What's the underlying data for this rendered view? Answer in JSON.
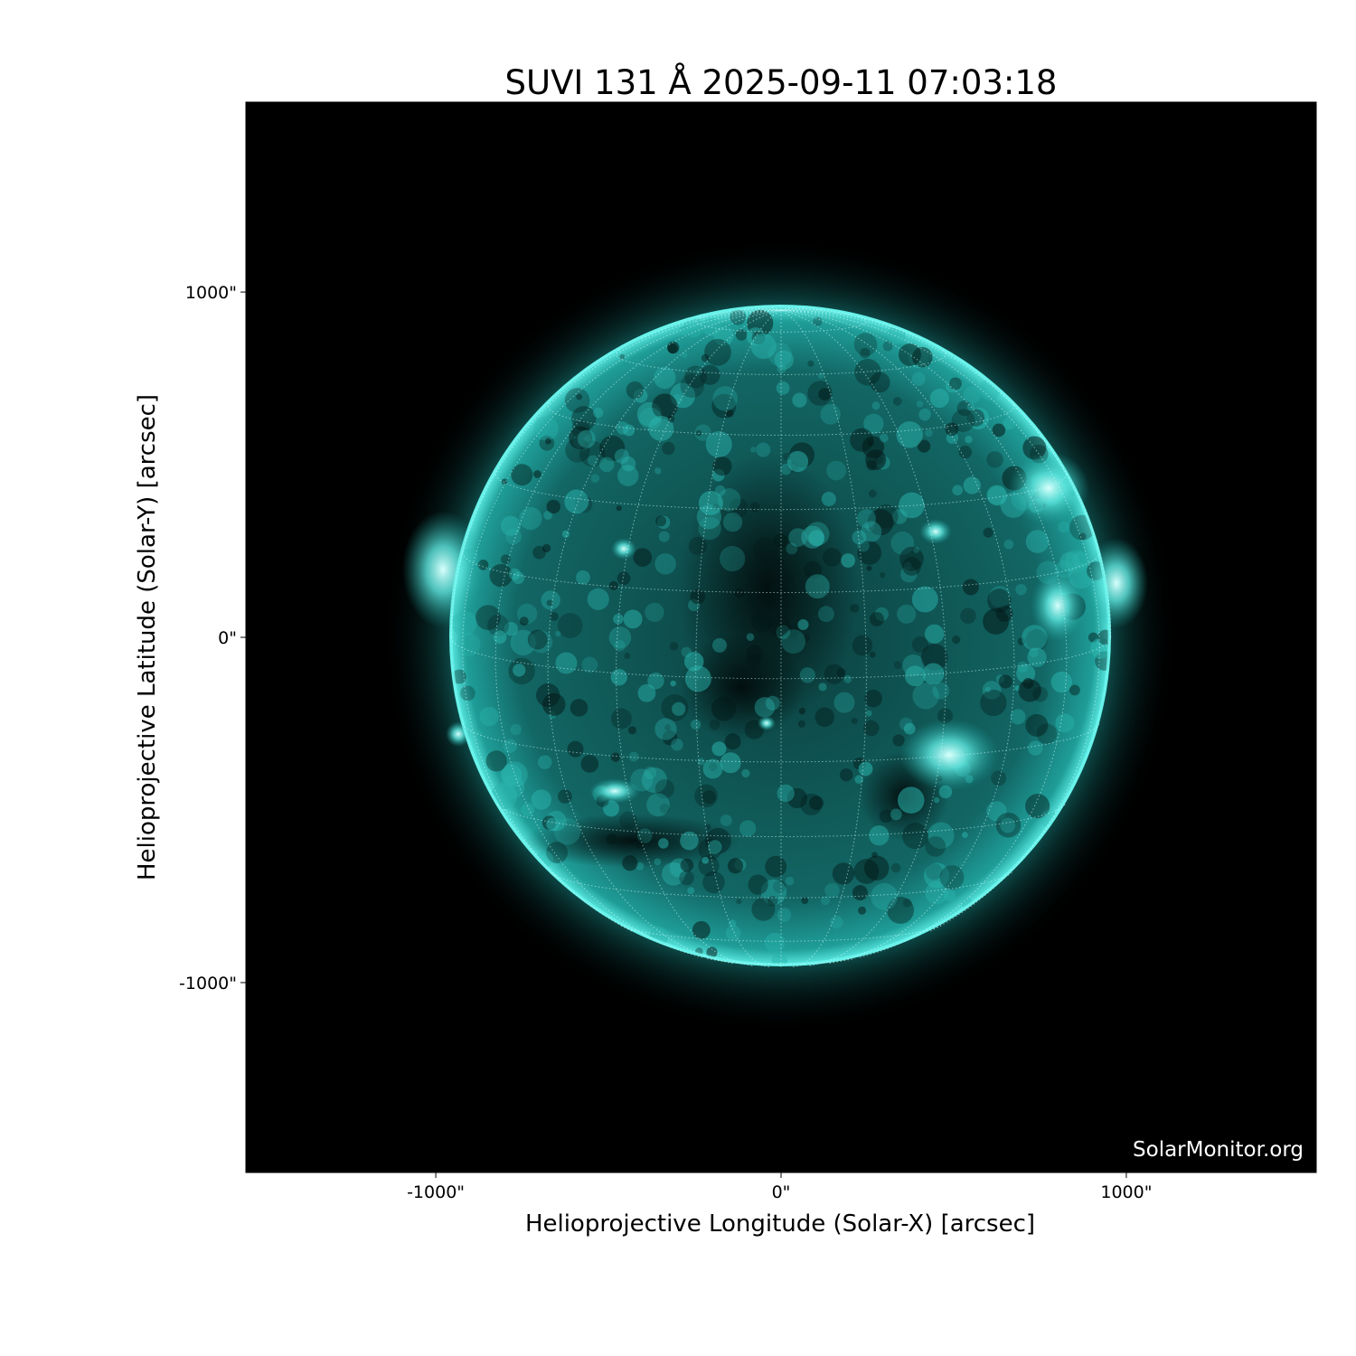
{
  "chart_data": {
    "type": "heatmap",
    "title": "SUVI 131 Å 2025-09-11 07:03:18",
    "xlabel": "Helioprojective Longitude (Solar-X) [arcsec]",
    "ylabel": "Helioprojective Latitude (Solar-Y) [arcsec]",
    "xlim": [
      -1550,
      1550
    ],
    "ylim": [
      -1550,
      1550
    ],
    "xticks": [
      {
        "value": -1000,
        "label": "-1000\""
      },
      {
        "value": 0,
        "label": "0\""
      },
      {
        "value": 1000,
        "label": "1000\""
      }
    ],
    "yticks": [
      {
        "value": 1000,
        "label": "1000\""
      },
      {
        "value": 0,
        "label": "0\""
      },
      {
        "value": -1000,
        "label": "-1000\""
      }
    ],
    "solar_radius_arcsec": 955,
    "grid": "heliographic, 15° spacing, dotted",
    "colormap": "black to cyan",
    "colors": {
      "background": "#000000",
      "disk": "#0e5a58",
      "limb": "#3fe0d8",
      "bright": "#c8fffb"
    },
    "watermark": "SolarMonitor.org"
  }
}
